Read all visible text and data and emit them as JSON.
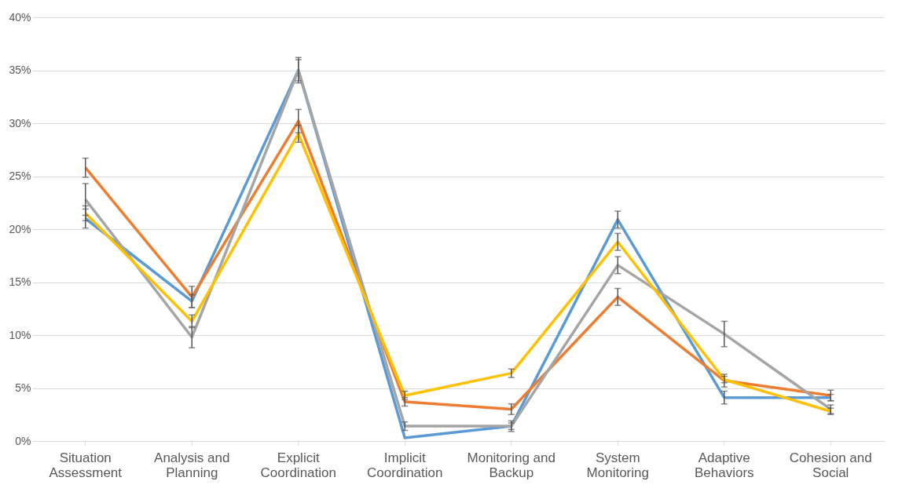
{
  "chart_data": {
    "type": "line",
    "categories": [
      "Situation Assessment",
      "Analysis and Planning",
      "Explicit Coordination",
      "Implicit Coordination",
      "Monitoring and Backup",
      "System Monitoring",
      "Adaptive Behaviors",
      "Cohesion and Social"
    ],
    "series": [
      {
        "color": "#5b9bd5",
        "values": [
          21.0,
          13.2,
          35.0,
          0.3,
          1.4,
          20.9,
          4.1,
          4.1
        ],
        "errors": [
          0.9,
          0.6,
          1.0,
          null,
          0.5,
          0.8,
          0.6,
          0.3
        ]
      },
      {
        "color": "#ed7d31",
        "values": [
          25.8,
          13.6,
          30.2,
          3.7,
          3.0,
          13.6,
          5.7,
          4.3
        ],
        "errors": [
          0.9,
          1.0,
          1.1,
          0.4,
          0.5,
          0.8,
          0.6,
          0.5
        ]
      },
      {
        "color": "#a5a5a5",
        "values": [
          22.8,
          9.8,
          35.0,
          1.4,
          1.4,
          16.6,
          10.1,
          3.0
        ],
        "errors": [
          1.5,
          1.0,
          1.2,
          0.4,
          0.3,
          0.8,
          1.2,
          0.4
        ]
      },
      {
        "color": "#ffc000",
        "values": [
          21.5,
          11.3,
          29.0,
          4.3,
          6.4,
          18.8,
          5.8,
          2.8
        ],
        "errors": [
          0.7,
          0.6,
          0.8,
          0.4,
          0.4,
          0.8,
          0.3,
          0.3
        ]
      }
    ],
    "ylim": [
      0,
      40
    ],
    "yticks": [
      {
        "value": 0,
        "label": "0%"
      },
      {
        "value": 5,
        "label": "5%"
      },
      {
        "value": 10,
        "label": "10%"
      },
      {
        "value": 15,
        "label": "15%"
      },
      {
        "value": 20,
        "label": "20%"
      },
      {
        "value": 25,
        "label": "25%"
      },
      {
        "value": 30,
        "label": "30%"
      },
      {
        "value": 35,
        "label": "35%"
      },
      {
        "value": 40,
        "label": "40%"
      }
    ],
    "grid": "y",
    "legend": false,
    "marker": "none",
    "line_style": "solid"
  }
}
